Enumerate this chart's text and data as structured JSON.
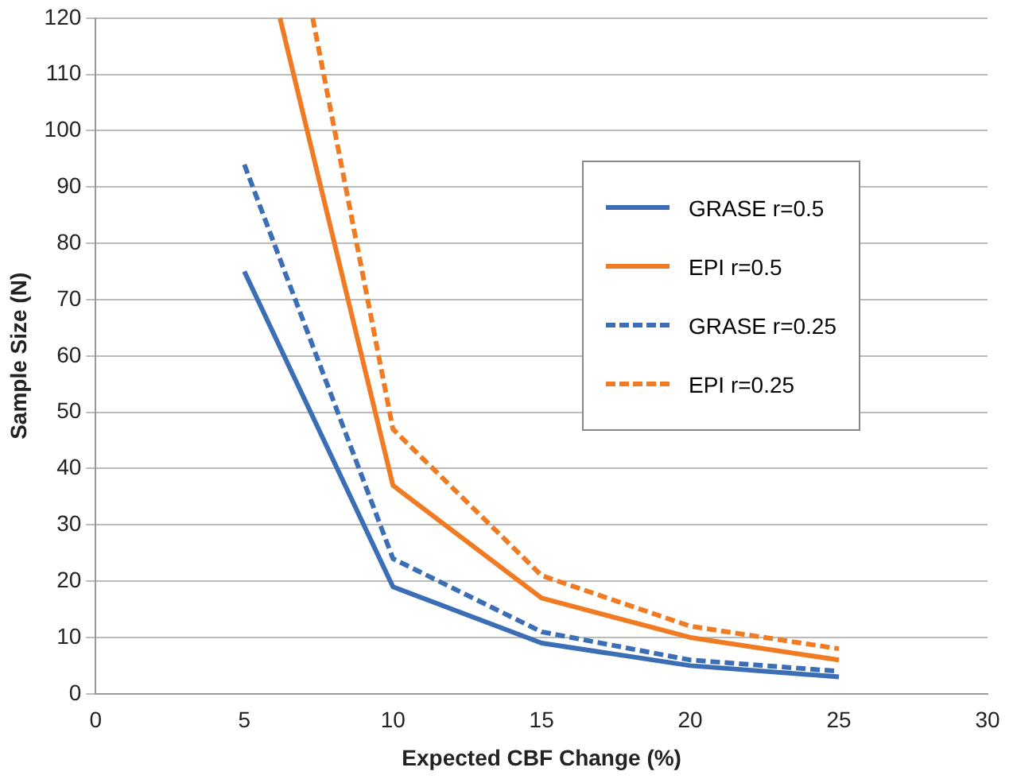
{
  "chart_data": {
    "type": "line",
    "xlabel": "Expected CBF Change (%)",
    "ylabel": "Sample Size (N)",
    "xlim": [
      0,
      30
    ],
    "xticks": [
      0,
      5,
      10,
      15,
      20,
      25,
      30
    ],
    "ylim": [
      0,
      120
    ],
    "yticks": [
      0,
      10,
      20,
      30,
      40,
      50,
      60,
      70,
      80,
      90,
      100,
      110,
      120
    ],
    "grid": "y",
    "legend": "top right",
    "marker": "none",
    "series": [
      {
        "name": "GRASE r=0.5",
        "color": "#3b6eb4",
        "x": [
          5,
          10,
          15,
          20,
          25
        ],
        "values": [
          75,
          19,
          9,
          5,
          3
        ],
        "line_style": "solid"
      },
      {
        "name": "EPI r=0.5",
        "color": "#f07b22",
        "x": [
          6.2,
          10,
          15,
          20,
          25
        ],
        "values": [
          120,
          37,
          17,
          10,
          6
        ],
        "line_style": "solid"
      },
      {
        "name": "GRASE r=0.25",
        "color": "#3b6eb4",
        "x": [
          5,
          10,
          15,
          20,
          25
        ],
        "values": [
          94,
          24,
          11,
          6,
          4
        ],
        "line_style": "dashed"
      },
      {
        "name": "EPI r=0.25",
        "color": "#f07b22",
        "x": [
          7.3,
          10,
          15,
          20,
          25
        ],
        "values": [
          120,
          47,
          21,
          12,
          8
        ],
        "line_style": "dashed"
      }
    ]
  }
}
